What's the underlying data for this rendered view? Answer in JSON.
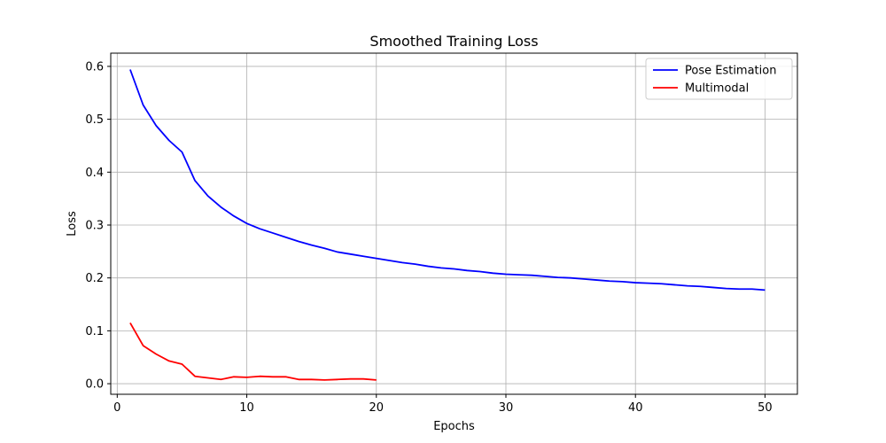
{
  "chart_data": {
    "type": "line",
    "title": "Smoothed Training Loss",
    "xlabel": "Epochs",
    "ylabel": "Loss",
    "xlim": [
      -0.5,
      52.5
    ],
    "ylim": [
      -0.02,
      0.625
    ],
    "xticks": [
      0,
      10,
      20,
      30,
      40,
      50
    ],
    "yticks": [
      0.0,
      0.1,
      0.2,
      0.3,
      0.4,
      0.5,
      0.6
    ],
    "grid": true,
    "legend_position": "top-right",
    "series": [
      {
        "name": "Pose Estimation",
        "color": "#0000ff",
        "x": [
          1,
          2,
          3,
          4,
          5,
          6,
          7,
          8,
          9,
          10,
          11,
          12,
          13,
          14,
          15,
          16,
          17,
          18,
          19,
          20,
          21,
          22,
          23,
          24,
          25,
          26,
          27,
          28,
          29,
          30,
          31,
          32,
          33,
          34,
          35,
          36,
          37,
          38,
          39,
          40,
          41,
          42,
          43,
          44,
          45,
          46,
          47,
          48,
          49,
          50
        ],
        "y": [
          0.594,
          0.527,
          0.488,
          0.46,
          0.438,
          0.384,
          0.355,
          0.334,
          0.317,
          0.303,
          0.293,
          0.285,
          0.277,
          0.269,
          0.262,
          0.256,
          0.249,
          0.245,
          0.241,
          0.237,
          0.233,
          0.229,
          0.226,
          0.222,
          0.219,
          0.217,
          0.214,
          0.212,
          0.209,
          0.207,
          0.206,
          0.205,
          0.203,
          0.201,
          0.2,
          0.198,
          0.196,
          0.194,
          0.193,
          0.191,
          0.19,
          0.189,
          0.187,
          0.185,
          0.184,
          0.182,
          0.18,
          0.179,
          0.179,
          0.177
        ]
      },
      {
        "name": "Multimodal",
        "color": "#ff0000",
        "x": [
          1,
          2,
          3,
          4,
          5,
          6,
          7,
          8,
          9,
          10,
          11,
          12,
          13,
          14,
          15,
          16,
          17,
          18,
          19,
          20
        ],
        "y": [
          0.115,
          0.072,
          0.056,
          0.043,
          0.037,
          0.014,
          0.011,
          0.008,
          0.013,
          0.012,
          0.014,
          0.013,
          0.013,
          0.008,
          0.008,
          0.007,
          0.008,
          0.009,
          0.009,
          0.007
        ]
      }
    ]
  }
}
